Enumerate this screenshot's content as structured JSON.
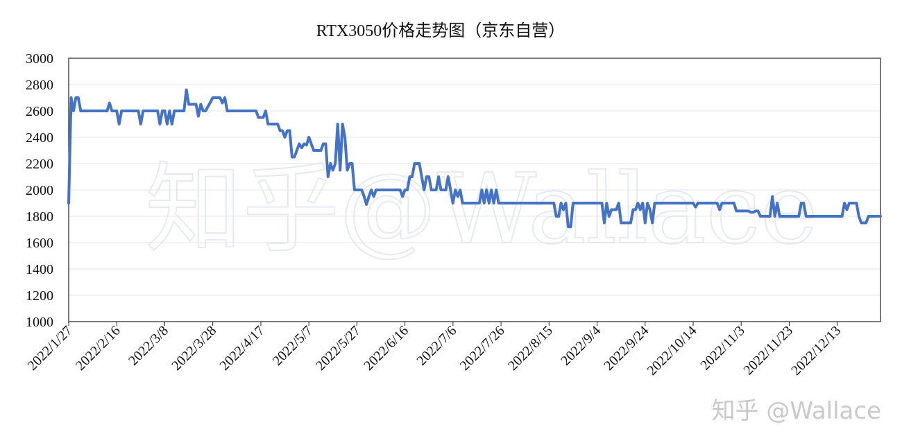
{
  "watermark_text": "知乎@Wallace",
  "corner_watermark": "知乎 @Wallace",
  "chart_data": {
    "type": "line",
    "title": "RTX3050价格走势图（京东自营）",
    "xlabel": "",
    "ylabel": "",
    "ylim": [
      1000,
      3000
    ],
    "yticks": [
      1000,
      1200,
      1400,
      1600,
      1800,
      2000,
      2200,
      2400,
      2600,
      2800,
      3000
    ],
    "xlim": [
      "2022/1/27",
      "2022/12/31"
    ],
    "xtick_labels": [
      "2022/1/27",
      "2022/2/16",
      "2022/3/8",
      "2022/3/28",
      "2022/4/17",
      "2022/5/7",
      "2022/5/27",
      "2022/6/16",
      "2022/7/6",
      "2022/7/26",
      "2022/8/15",
      "2022/9/4",
      "2022/9/24",
      "2022/10/14",
      "2022/11/3",
      "2022/11/23",
      "2022/12/13"
    ],
    "grid": true,
    "legend": "none",
    "color": "#4472c4",
    "series": [
      {
        "points": [
          [
            "2022/1/27",
            1900
          ],
          [
            "2022/1/28",
            2700
          ],
          [
            "2022/1/29",
            2600
          ],
          [
            "2022/1/30",
            2700
          ],
          [
            "2022/1/31",
            2700
          ],
          [
            "2022/2/1",
            2600
          ],
          [
            "2022/2/12",
            2600
          ],
          [
            "2022/2/13",
            2660
          ],
          [
            "2022/2/14",
            2600
          ],
          [
            "2022/2/16",
            2600
          ],
          [
            "2022/2/17",
            2500
          ],
          [
            "2022/2/18",
            2600
          ],
          [
            "2022/2/25",
            2600
          ],
          [
            "2022/2/26",
            2500
          ],
          [
            "2022/2/27",
            2600
          ],
          [
            "2022/3/5",
            2600
          ],
          [
            "2022/3/6",
            2500
          ],
          [
            "2022/3/7",
            2600
          ],
          [
            "2022/3/8",
            2600
          ],
          [
            "2022/3/9",
            2500
          ],
          [
            "2022/3/10",
            2600
          ],
          [
            "2022/3/11",
            2500
          ],
          [
            "2022/3/12",
            2600
          ],
          [
            "2022/3/16",
            2600
          ],
          [
            "2022/3/17",
            2760
          ],
          [
            "2022/3/18",
            2650
          ],
          [
            "2022/3/21",
            2650
          ],
          [
            "2022/3/22",
            2560
          ],
          [
            "2022/3/23",
            2650
          ],
          [
            "2022/3/24",
            2600
          ],
          [
            "2022/3/25",
            2600
          ],
          [
            "2022/3/28",
            2700
          ],
          [
            "2022/3/31",
            2700
          ],
          [
            "2022/4/1",
            2660
          ],
          [
            "2022/4/2",
            2700
          ],
          [
            "2022/4/3",
            2600
          ],
          [
            "2022/4/15",
            2600
          ],
          [
            "2022/4/16",
            2550
          ],
          [
            "2022/4/18",
            2550
          ],
          [
            "2022/4/19",
            2600
          ],
          [
            "2022/4/20",
            2500
          ],
          [
            "2022/4/24",
            2500
          ],
          [
            "2022/4/25",
            2450
          ],
          [
            "2022/4/26",
            2450
          ],
          [
            "2022/4/27",
            2400
          ],
          [
            "2022/4/28",
            2450
          ],
          [
            "2022/4/29",
            2450
          ],
          [
            "2022/4/30",
            2250
          ],
          [
            "2022/5/1",
            2250
          ],
          [
            "2022/5/2",
            2300
          ],
          [
            "2022/5/3",
            2350
          ],
          [
            "2022/5/4",
            2320
          ],
          [
            "2022/5/5",
            2350
          ],
          [
            "2022/5/6",
            2340
          ],
          [
            "2022/5/7",
            2400
          ],
          [
            "2022/5/8",
            2350
          ],
          [
            "2022/5/9",
            2300
          ],
          [
            "2022/5/12",
            2300
          ],
          [
            "2022/5/13",
            2350
          ],
          [
            "2022/5/14",
            2350
          ],
          [
            "2022/5/15",
            2100
          ],
          [
            "2022/5/16",
            2200
          ],
          [
            "2022/5/17",
            2150
          ],
          [
            "2022/5/18",
            2200
          ],
          [
            "2022/5/19",
            2500
          ],
          [
            "2022/5/20",
            2150
          ],
          [
            "2022/5/21",
            2500
          ],
          [
            "2022/5/22",
            2400
          ],
          [
            "2022/5/23",
            2150
          ],
          [
            "2022/5/24",
            2200
          ],
          [
            "2022/5/25",
            2200
          ],
          [
            "2022/5/26",
            2000
          ],
          [
            "2022/5/29",
            2000
          ],
          [
            "2022/5/30",
            1950
          ],
          [
            "2022/5/31",
            1890
          ],
          [
            "2022/6/1",
            1950
          ],
          [
            "2022/6/2",
            2000
          ],
          [
            "2022/6/3",
            1950
          ],
          [
            "2022/6/4",
            2000
          ],
          [
            "2022/6/14",
            2000
          ],
          [
            "2022/6/15",
            1950
          ],
          [
            "2022/6/16",
            2000
          ],
          [
            "2022/6/17",
            2000
          ],
          [
            "2022/6/18",
            2100
          ],
          [
            "2022/6/19",
            2100
          ],
          [
            "2022/6/20",
            2200
          ],
          [
            "2022/6/22",
            2200
          ],
          [
            "2022/6/23",
            2100
          ],
          [
            "2022/6/24",
            2000
          ],
          [
            "2022/6/25",
            2100
          ],
          [
            "2022/6/26",
            2100
          ],
          [
            "2022/6/27",
            2000
          ],
          [
            "2022/6/29",
            2000
          ],
          [
            "2022/6/30",
            2100
          ],
          [
            "2022/7/1",
            2000
          ],
          [
            "2022/7/3",
            2000
          ],
          [
            "2022/7/4",
            2100
          ],
          [
            "2022/7/5",
            2000
          ],
          [
            "2022/7/6",
            1900
          ],
          [
            "2022/7/7",
            2000
          ],
          [
            "2022/7/8",
            1950
          ],
          [
            "2022/7/9",
            2000
          ],
          [
            "2022/7/10",
            1900
          ],
          [
            "2022/7/17",
            1900
          ],
          [
            "2022/7/18",
            2000
          ],
          [
            "2022/7/19",
            1900
          ],
          [
            "2022/7/20",
            2000
          ],
          [
            "2022/7/21",
            1900
          ],
          [
            "2022/7/22",
            2000
          ],
          [
            "2022/7/23",
            1900
          ],
          [
            "2022/7/24",
            2000
          ],
          [
            "2022/7/25",
            1900
          ],
          [
            "2022/8/17",
            1900
          ],
          [
            "2022/8/18",
            1800
          ],
          [
            "2022/8/19",
            1800
          ],
          [
            "2022/8/20",
            1900
          ],
          [
            "2022/8/21",
            1850
          ],
          [
            "2022/8/22",
            1900
          ],
          [
            "2022/8/23",
            1720
          ],
          [
            "2022/8/24",
            1720
          ],
          [
            "2022/8/25",
            1900
          ],
          [
            "2022/9/6",
            1900
          ],
          [
            "2022/9/7",
            1750
          ],
          [
            "2022/9/8",
            1900
          ],
          [
            "2022/9/9",
            1800
          ],
          [
            "2022/9/10",
            1850
          ],
          [
            "2022/9/12",
            1850
          ],
          [
            "2022/9/13",
            1900
          ],
          [
            "2022/9/14",
            1750
          ],
          [
            "2022/9/18",
            1750
          ],
          [
            "2022/9/19",
            1850
          ],
          [
            "2022/9/20",
            1850
          ],
          [
            "2022/9/21",
            1900
          ],
          [
            "2022/9/22",
            1850
          ],
          [
            "2022/9/23",
            1900
          ],
          [
            "2022/9/24",
            1750
          ],
          [
            "2022/9/25",
            1900
          ],
          [
            "2022/9/26",
            1850
          ],
          [
            "2022/9/27",
            1750
          ],
          [
            "2022/9/28",
            1900
          ],
          [
            "2022/10/14",
            1900
          ],
          [
            "2022/10/15",
            1870
          ],
          [
            "2022/10/16",
            1900
          ],
          [
            "2022/10/24",
            1900
          ],
          [
            "2022/10/25",
            1850
          ],
          [
            "2022/10/26",
            1900
          ],
          [
            "2022/10/31",
            1900
          ],
          [
            "2022/11/1",
            1840
          ],
          [
            "2022/11/6",
            1840
          ],
          [
            "2022/11/7",
            1830
          ],
          [
            "2022/11/8",
            1830
          ],
          [
            "2022/11/9",
            1840
          ],
          [
            "2022/11/10",
            1840
          ],
          [
            "2022/11/11",
            1800
          ],
          [
            "2022/11/15",
            1800
          ],
          [
            "2022/11/16",
            1950
          ],
          [
            "2022/11/17",
            1800
          ],
          [
            "2022/11/18",
            1900
          ],
          [
            "2022/11/19",
            1800
          ],
          [
            "2022/11/27",
            1800
          ],
          [
            "2022/11/28",
            1900
          ],
          [
            "2022/11/29",
            1900
          ],
          [
            "2022/11/30",
            1800
          ],
          [
            "2022/12/15",
            1800
          ],
          [
            "2022/12/16",
            1900
          ],
          [
            "2022/12/17",
            1850
          ],
          [
            "2022/12/18",
            1900
          ],
          [
            "2022/12/21",
            1900
          ],
          [
            "2022/12/22",
            1800
          ],
          [
            "2022/12/23",
            1750
          ],
          [
            "2022/12/25",
            1750
          ],
          [
            "2022/12/26",
            1800
          ],
          [
            "2022/12/31",
            1800
          ]
        ]
      }
    ]
  }
}
